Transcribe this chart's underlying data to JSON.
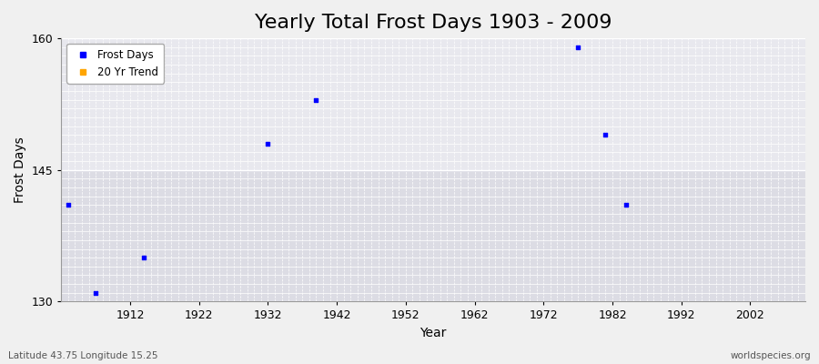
{
  "title": "Yearly Total Frost Days 1903 - 2009",
  "xlabel": "Year",
  "ylabel": "Frost Days",
  "xlim": [
    1902,
    2010
  ],
  "ylim": [
    130,
    160
  ],
  "yticks": [
    130,
    145,
    160
  ],
  "xticks": [
    1912,
    1922,
    1932,
    1942,
    1952,
    1962,
    1972,
    1982,
    1992,
    2002
  ],
  "scatter_x": [
    1903,
    1907,
    1914,
    1932,
    1939,
    1977,
    1981,
    1984
  ],
  "scatter_y": [
    141,
    131,
    135,
    148,
    153,
    159,
    149,
    141
  ],
  "scatter_color": "#0000ff",
  "scatter_size": 8,
  "bg_color": "#f0f0f0",
  "plot_bg_upper": "#e8e8ee",
  "plot_bg_lower": "#dcdce4",
  "grid_color": "#ffffff",
  "subtitle_left": "Latitude 43.75 Longitude 15.25",
  "subtitle_right": "worldspecies.org",
  "legend_frost_color": "#0000ff",
  "legend_trend_color": "#ffa500",
  "title_fontsize": 16,
  "axis_label_fontsize": 10,
  "tick_fontsize": 9
}
